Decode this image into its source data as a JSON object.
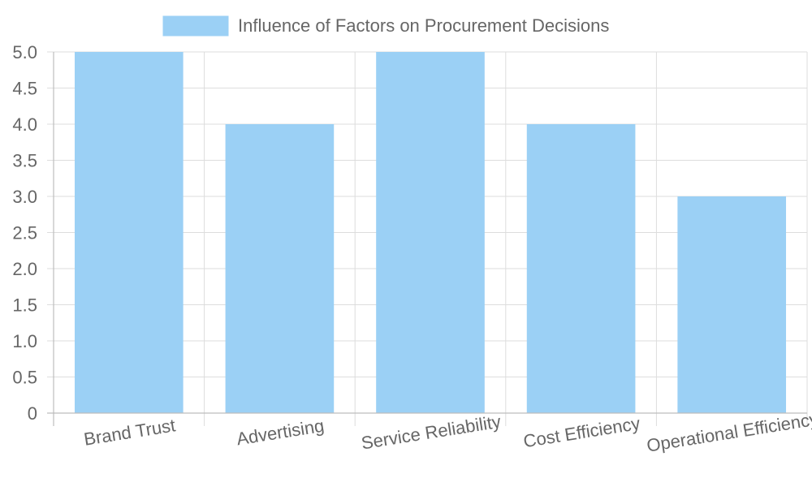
{
  "chart_data": {
    "type": "bar",
    "categories": [
      "Brand Trust",
      "Advertising",
      "Service Reliability",
      "Cost Efficiency",
      "Operational Efficiency"
    ],
    "series": [
      {
        "name": "Influence of Factors on Procurement Decisions",
        "values": [
          5,
          4,
          5,
          4,
          3
        ],
        "color": "#36A2EB"
      }
    ],
    "ylim": [
      0,
      5
    ],
    "y_ticks": [
      "0",
      "0.5",
      "1.0",
      "1.5",
      "2.0",
      "2.5",
      "3.0",
      "3.5",
      "4.0",
      "4.5",
      "5.0"
    ],
    "grid": true,
    "legend_position": "top",
    "bar_fill": "#9BD0F5",
    "axis_label_color": "#666666"
  }
}
